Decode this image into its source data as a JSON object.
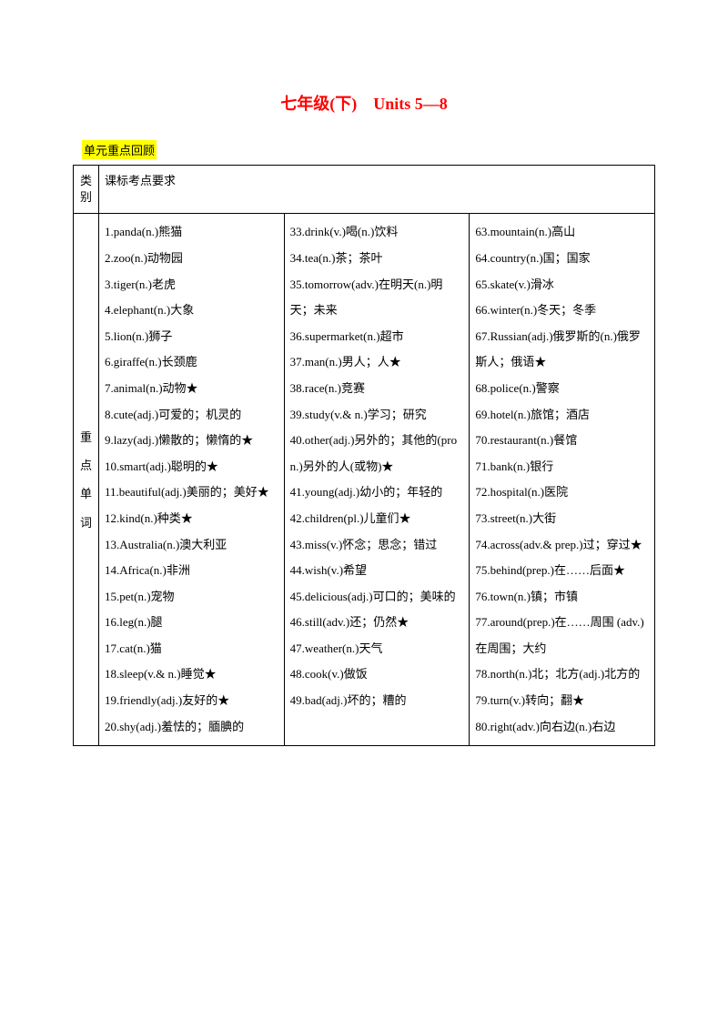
{
  "title": "七年级(下)　Units 5—8",
  "section_label": "单元重点回顾",
  "table": {
    "header": {
      "category": "类别",
      "requirement": "课标考点要求"
    },
    "category_label": [
      "重",
      "点",
      "单",
      "词"
    ],
    "col1": "1.panda(n.)熊猫\n2.zoo(n.)动物园\n3.tiger(n.)老虎\n4.elephant(n.)大象\n5.lion(n.)狮子\n6.giraffe(n.)长颈鹿\n7.animal(n.)动物★\n8.cute(adj.)可爱的；机灵的\n9.lazy(adj.)懒散的；懒惰的★\n10.smart(adj.)聪明的★\n11.beautiful(adj.)美丽的；美好★\n12.kind(n.)种类★\n13.Australia(n.)澳大利亚\n14.Africa(n.)非洲\n15.pet(n.)宠物\n16.leg(n.)腿\n17.cat(n.)猫\n18.sleep(v.& n.)睡觉★\n19.friendly(adj.)友好的★\n20.shy(adj.)羞怯的；腼腆的",
    "col2": "33.drink(v.)喝(n.)饮料\n34.tea(n.)茶；茶叶\n35.tomorrow(adv.)在明天(n.)明天；未来\n36.supermarket(n.)超市\n37.man(n.)男人；人★\n38.race(n.)竞赛\n39.study(v.& n.)学习；研究\n40.other(adj.)另外的；其他的(pron.)另外的人(或物)★\n41.young(adj.)幼小的；年轻的\n42.children(pl.)儿童们★\n43.miss(v.)怀念；思念；错过\n44.wish(v.)希望\n45.delicious(adj.)可口的；美味的\n46.still(adv.)还；仍然★\n47.weather(n.)天气\n48.cook(v.)做饭\n49.bad(adj.)坏的；糟的",
    "col3": "63.mountain(n.)高山\n64.country(n.)国；国家\n65.skate(v.)滑冰\n66.winter(n.)冬天；冬季\n67.Russian(adj.)俄罗斯的(n.)俄罗斯人；俄语★\n68.police(n.)警察\n69.hotel(n.)旅馆；酒店\n70.restaurant(n.)餐馆\n71.bank(n.)银行\n72.hospital(n.)医院\n73.street(n.)大街\n74.across(adv.& prep.)过；穿过★\n75.behind(prep.)在……后面★\n76.town(n.)镇；市镇\n77.around(prep.)在……周围 (adv.)在周围；大约\n78.north(n.)北；北方(adj.)北方的\n79.turn(v.)转向；翻★\n80.right(adv.)向右边(n.)右边"
  }
}
